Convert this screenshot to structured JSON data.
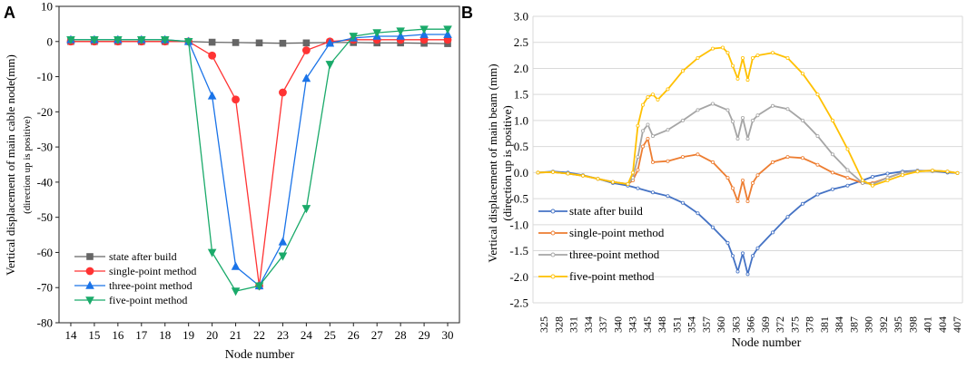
{
  "chart_data": [
    {
      "panel": "A",
      "type": "line",
      "xlabel": "Node number",
      "ylabel": "Vertical displacement of main cable node(mm)",
      "ylabel2": "(direction up is positive)",
      "x": [
        14,
        15,
        16,
        17,
        18,
        19,
        20,
        21,
        22,
        23,
        24,
        25,
        26,
        27,
        28,
        29,
        30
      ],
      "xlim": [
        13.5,
        30.5
      ],
      "ylim": [
        -80,
        10
      ],
      "yticks": [
        10,
        0,
        -10,
        -20,
        -30,
        -40,
        -50,
        -60,
        -70,
        -80
      ],
      "grid": false,
      "legend": "lower-left",
      "series": [
        {
          "name": "state after build",
          "color": "#666666",
          "marker": "square",
          "values": [
            0,
            0,
            0,
            0,
            0,
            0,
            -0.2,
            -0.3,
            -0.4,
            -0.5,
            -0.4,
            -0.3,
            -0.3,
            -0.4,
            -0.4,
            -0.5,
            -0.6
          ]
        },
        {
          "name": "single-point method",
          "color": "#ff3333",
          "marker": "circle",
          "values": [
            0,
            0,
            0,
            0,
            0,
            0,
            -4,
            -16.5,
            -69.5,
            -14.5,
            -2.5,
            0,
            0.5,
            0.5,
            0.5,
            0.5,
            0.5
          ]
        },
        {
          "name": "three-point method",
          "color": "#1a73e8",
          "marker": "triangle-up",
          "values": [
            0.5,
            0.5,
            0.5,
            0.5,
            0.5,
            0,
            -15.5,
            -64,
            -69.5,
            -57,
            -10.5,
            -0.5,
            1,
            1.5,
            1.5,
            2,
            2
          ]
        },
        {
          "name": "five-point method",
          "color": "#1aaa6a",
          "marker": "triangle-down",
          "values": [
            0.5,
            0.5,
            0.5,
            0.5,
            0.5,
            0,
            -60,
            -71,
            -69.5,
            -61,
            -47.5,
            -6.5,
            1.5,
            2.5,
            3,
            3.5,
            3.5
          ]
        }
      ]
    },
    {
      "panel": "B",
      "type": "line",
      "xlabel": "Node number",
      "ylabel": "Vertical displacement of main beam  (mm)",
      "ylabel2": "(direction up is positive)",
      "xtick_labels": [
        "325",
        "328",
        "331",
        "334",
        "337",
        "340",
        "343",
        "345",
        "348",
        "351",
        "354",
        "357",
        "360",
        "363",
        "366",
        "369",
        "372",
        "375",
        "378",
        "381",
        "384",
        "387",
        "390",
        "392",
        "395",
        "398",
        "401",
        "404",
        "407"
      ],
      "ylim": [
        -2.5,
        3.0
      ],
      "yticks": [
        "3.0",
        "2.5",
        "2.0",
        "1.5",
        "1.0",
        "0.5",
        "0.0",
        "-0.5",
        "-1.0",
        "-1.5",
        "-2.0",
        "-2.5"
      ],
      "grid": true,
      "legend": "lower-left",
      "series": [
        {
          "name": "state after build",
          "color": "#4472c4",
          "x": [
            325,
            328,
            331,
            334,
            337,
            340,
            343,
            345,
            348,
            351,
            354,
            357,
            360,
            363,
            364,
            365,
            366,
            367,
            368,
            369,
            372,
            375,
            378,
            381,
            384,
            387,
            390,
            392,
            395,
            398,
            401,
            404,
            407,
            409
          ],
          "values": [
            0.0,
            0.02,
            0.0,
            -0.05,
            -0.12,
            -0.2,
            -0.25,
            -0.3,
            -0.38,
            -0.45,
            -0.58,
            -0.78,
            -1.05,
            -1.35,
            -1.6,
            -1.9,
            -1.55,
            -1.95,
            -1.6,
            -1.45,
            -1.15,
            -0.85,
            -0.6,
            -0.42,
            -0.32,
            -0.25,
            -0.15,
            -0.08,
            -0.02,
            0.02,
            0.04,
            0.03,
            0.0,
            -0.01
          ]
        },
        {
          "name": "single-point method",
          "color": "#ed7d31",
          "x": [
            325,
            328,
            331,
            334,
            337,
            340,
            343,
            344,
            345,
            346,
            347,
            348,
            351,
            354,
            357,
            360,
            363,
            364,
            365,
            366,
            367,
            368,
            369,
            372,
            375,
            378,
            381,
            384,
            387,
            390,
            392,
            395,
            398,
            401,
            404,
            407,
            409
          ],
          "values": [
            0.0,
            0.01,
            -0.02,
            -0.06,
            -0.12,
            -0.18,
            -0.22,
            -0.15,
            0.05,
            0.5,
            0.65,
            0.2,
            0.22,
            0.3,
            0.35,
            0.2,
            -0.1,
            -0.3,
            -0.55,
            -0.15,
            -0.55,
            -0.2,
            -0.05,
            0.2,
            0.3,
            0.28,
            0.15,
            0.0,
            -0.1,
            -0.2,
            -0.2,
            -0.1,
            0.0,
            0.03,
            0.04,
            0.02,
            -0.01
          ]
        },
        {
          "name": "three-point method",
          "color": "#a5a5a5",
          "x": [
            325,
            328,
            331,
            334,
            337,
            340,
            343,
            344,
            345,
            346,
            347,
            348,
            351,
            354,
            357,
            360,
            363,
            364,
            365,
            366,
            367,
            368,
            369,
            372,
            375,
            378,
            381,
            384,
            387,
            390,
            392,
            395,
            398,
            401,
            404,
            407,
            409
          ],
          "values": [
            0.0,
            0.01,
            -0.02,
            -0.06,
            -0.12,
            -0.18,
            -0.22,
            -0.1,
            0.3,
            0.8,
            0.92,
            0.7,
            0.82,
            1.0,
            1.2,
            1.32,
            1.2,
            0.98,
            0.65,
            1.05,
            0.65,
            1.0,
            1.1,
            1.28,
            1.22,
            1.0,
            0.7,
            0.35,
            0.05,
            -0.2,
            -0.22,
            -0.1,
            0.0,
            0.03,
            0.04,
            0.02,
            -0.01
          ]
        },
        {
          "name": "five-point method",
          "color": "#ffc000",
          "x": [
            325,
            328,
            331,
            334,
            337,
            340,
            343,
            344,
            345,
            346,
            347,
            348,
            349,
            351,
            354,
            357,
            360,
            362,
            363,
            364,
            365,
            366,
            367,
            368,
            369,
            372,
            375,
            378,
            381,
            384,
            387,
            390,
            392,
            395,
            398,
            401,
            404,
            407,
            409
          ],
          "values": [
            0.0,
            0.01,
            -0.02,
            -0.06,
            -0.12,
            -0.18,
            -0.22,
            0.0,
            0.9,
            1.3,
            1.45,
            1.5,
            1.4,
            1.6,
            1.95,
            2.2,
            2.38,
            2.4,
            2.3,
            2.05,
            1.8,
            2.2,
            1.78,
            2.2,
            2.25,
            2.3,
            2.2,
            1.9,
            1.5,
            1.0,
            0.45,
            -0.15,
            -0.25,
            -0.15,
            -0.05,
            0.02,
            0.04,
            0.02,
            -0.01
          ]
        }
      ]
    }
  ]
}
